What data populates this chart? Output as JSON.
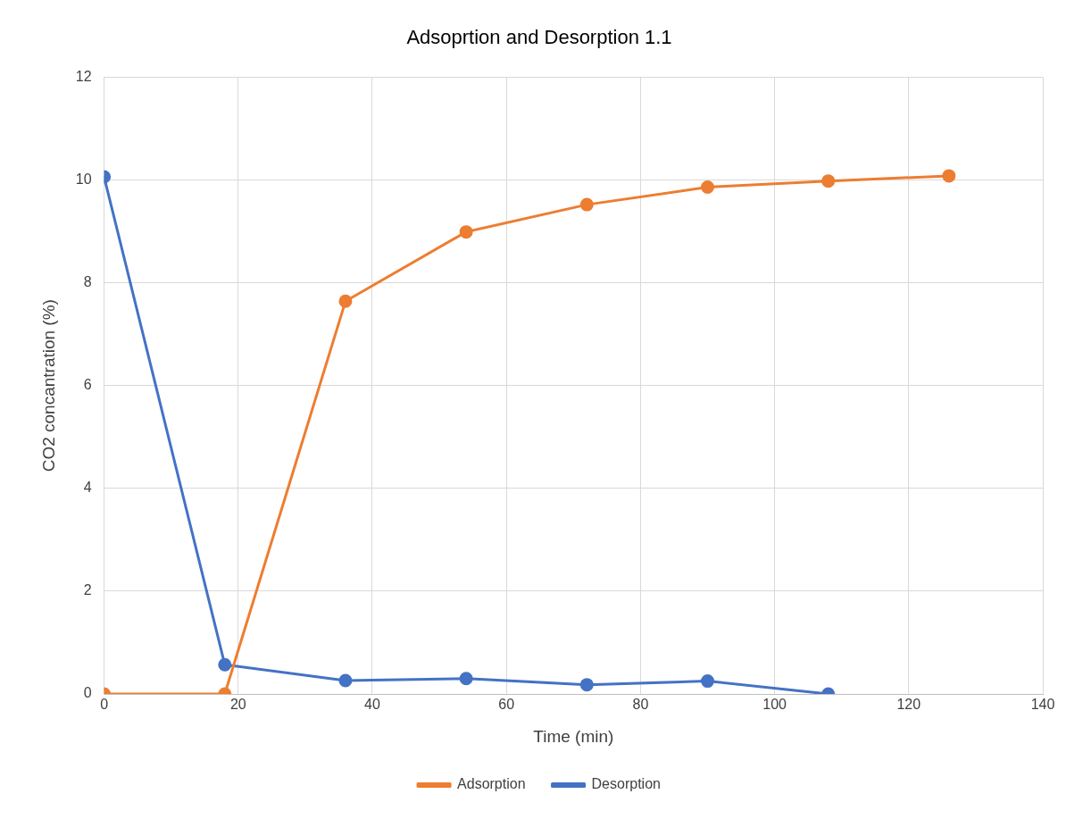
{
  "chart_data": {
    "type": "line",
    "title": "Adsoprtion and Desorption 1.1",
    "xlabel": "Time (min)",
    "ylabel": "CO2 concantration (%)",
    "series": [
      {
        "name": "Adsorption",
        "color": "#ed7d31",
        "x": [
          0,
          18,
          36,
          54,
          72,
          90,
          108,
          126
        ],
        "values": [
          0,
          0,
          7.64,
          8.99,
          9.52,
          9.86,
          9.98,
          10.08
        ]
      },
      {
        "name": "Desorption",
        "color": "#4472c4",
        "x": [
          0,
          18,
          36,
          54,
          72,
          90,
          108
        ],
        "values": [
          10.06,
          0.57,
          0.26,
          0.3,
          0.18,
          0.25,
          0
        ]
      }
    ],
    "xlim": [
      0,
      140
    ],
    "xticks": [
      0,
      20,
      40,
      60,
      80,
      100,
      120,
      140
    ],
    "ylim": [
      0,
      12
    ],
    "yticks": [
      0,
      2,
      4,
      6,
      8,
      10,
      12
    ],
    "grid": true,
    "legend": "bottom",
    "marker": "circle",
    "line_style": "solid"
  }
}
